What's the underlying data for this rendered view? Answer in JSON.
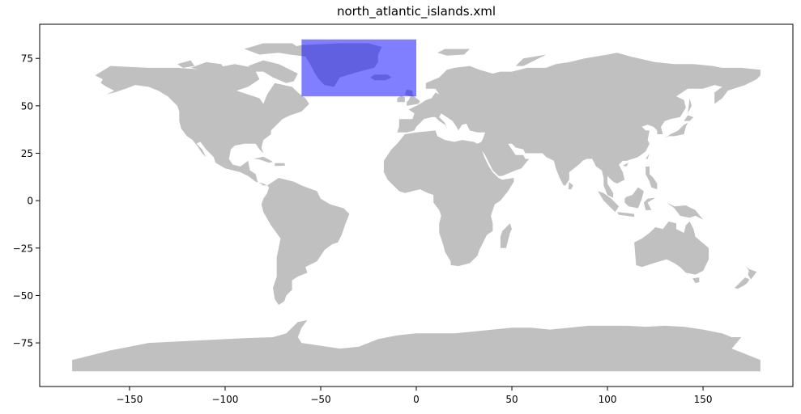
{
  "title": "north_atlantic_islands.xml",
  "chart_data": {
    "type": "map",
    "title": "north_atlantic_islands.xml",
    "xlabel": "",
    "ylabel": "",
    "xlim": [
      -197,
      197
    ],
    "ylim": [
      -98,
      93
    ],
    "xticks": [
      -150,
      -100,
      -50,
      0,
      50,
      100,
      150
    ],
    "yticks": [
      -75,
      -50,
      -25,
      0,
      25,
      50,
      75
    ],
    "xtick_labels": [
      "−150",
      "−100",
      "−50",
      "0",
      "50",
      "100",
      "150"
    ],
    "ytick_labels": [
      "−75",
      "−50",
      "−25",
      "0",
      "25",
      "50",
      "75"
    ],
    "grid": false,
    "land_color": "#c0c0c0",
    "highlight_region": {
      "name": "north_atlantic_islands",
      "lon_min": -60,
      "lon_max": 0,
      "lat_min": 55,
      "lat_max": 85,
      "color": "#0000ff",
      "alpha": 0.5
    }
  }
}
